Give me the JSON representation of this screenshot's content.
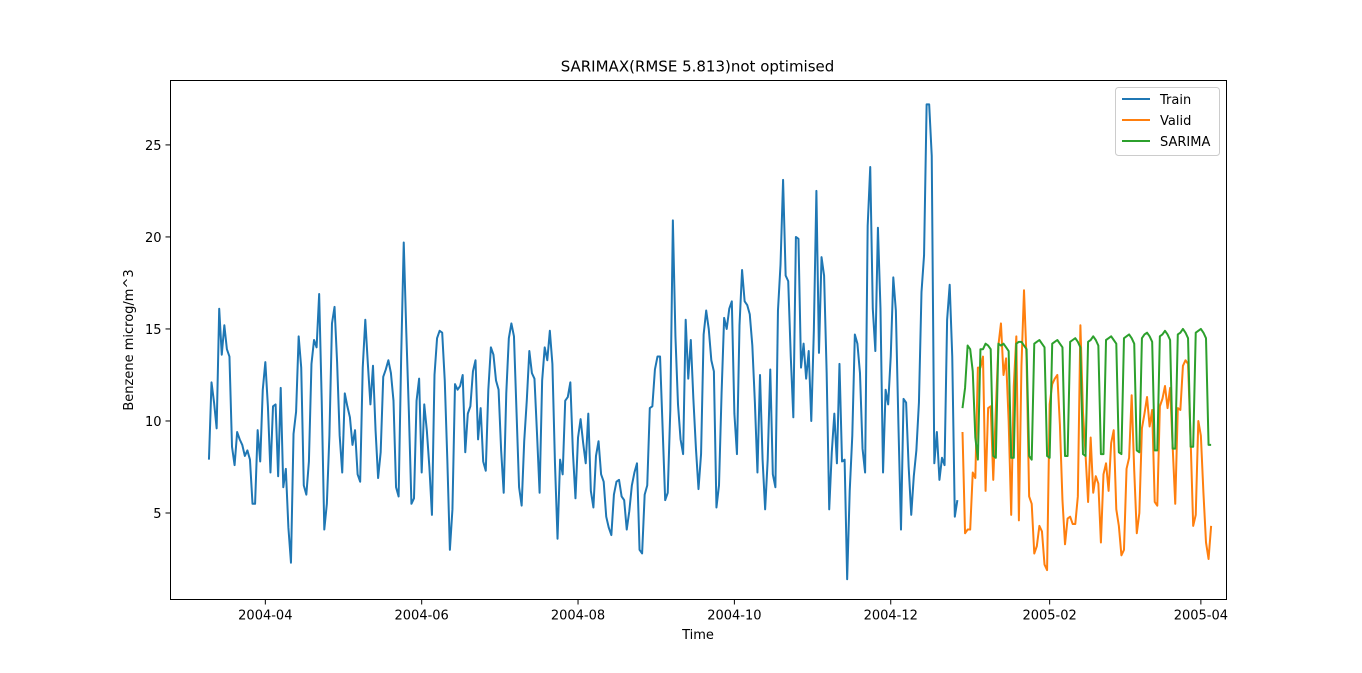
{
  "chart_data": {
    "type": "line",
    "title": "SARIMAX(RMSE 5.813)not optimised",
    "xlabel": "Time",
    "ylabel": "Benzene microg/m^3",
    "xlim": [
      "2004-02-24",
      "2005-04-11"
    ],
    "ylim": [
      0.3,
      28.5
    ],
    "x_ticks": [
      "2004-04-01",
      "2004-06-01",
      "2004-08-01",
      "2004-10-01",
      "2004-12-01",
      "2005-02-01",
      "2005-04-01"
    ],
    "x_tick_labels": [
      "2004-04",
      "2004-06",
      "2004-08",
      "2004-10",
      "2004-12",
      "2005-02",
      "2005-04"
    ],
    "y_ticks": [
      5,
      10,
      15,
      20,
      25
    ],
    "y_tick_labels": [
      "5",
      "10",
      "15",
      "20",
      "25"
    ],
    "grid": false,
    "legend_position": "upper right",
    "series": [
      {
        "name": "Train",
        "color": "#1f77b4",
        "start_date": "2004-03-10",
        "values": [
          7.9,
          12.1,
          11.0,
          9.6,
          16.1,
          13.6,
          15.2,
          13.9,
          13.5,
          8.6,
          7.6,
          9.4,
          9.0,
          8.7,
          8.1,
          8.4,
          7.9,
          5.5,
          5.5,
          9.5,
          7.8,
          11.7,
          13.2,
          10.8,
          7.2,
          10.8,
          10.9,
          7.0,
          11.8,
          6.4,
          7.4,
          4.2,
          2.3,
          9.3,
          10.5,
          14.6,
          12.9,
          6.5,
          6.0,
          7.8,
          13.1,
          14.4,
          14.0,
          16.9,
          11.1,
          4.1,
          5.5,
          9.2,
          15.3,
          16.2,
          13.2,
          9.2,
          7.2,
          11.5,
          10.8,
          10.2,
          8.7,
          9.5,
          7.1,
          6.7,
          12.9,
          15.5,
          13.1,
          10.9,
          13.0,
          9.5,
          6.9,
          8.3,
          12.4,
          12.8,
          13.3,
          12.6,
          11.1,
          6.4,
          5.9,
          13.5,
          19.7,
          14.8,
          10.5,
          5.5,
          5.8,
          11.1,
          12.3,
          7.2,
          10.9,
          9.5,
          7.5,
          4.9,
          12.5,
          14.5,
          14.9,
          14.8,
          12.2,
          7.9,
          3.0,
          5.2,
          12.0,
          11.7,
          11.9,
          12.5,
          8.3,
          10.4,
          10.8,
          12.7,
          13.3,
          9.0,
          10.7,
          7.8,
          7.3,
          11.7,
          14.0,
          13.6,
          12.2,
          11.7,
          8.4,
          6.1,
          11.5,
          14.5,
          15.3,
          14.6,
          10.5,
          6.4,
          5.4,
          8.9,
          11.1,
          13.8,
          12.6,
          12.3,
          9.3,
          6.1,
          12.2,
          14.0,
          13.3,
          14.9,
          13.1,
          7.7,
          3.6,
          7.9,
          7.1,
          11.1,
          11.3,
          12.1,
          8.3,
          5.8,
          9.1,
          10.1,
          8.8,
          7.7,
          10.4,
          6.2,
          5.3,
          8.1,
          8.9,
          7.1,
          6.7,
          4.8,
          4.2,
          3.8,
          6.0,
          6.7,
          6.8,
          5.9,
          5.7,
          4.1,
          5.1,
          6.5,
          7.2,
          7.7,
          3.0,
          2.8,
          6.0,
          6.5,
          10.7,
          10.8,
          12.8,
          13.5,
          13.5,
          9.6,
          5.7,
          6.1,
          10.6,
          20.9,
          14.6,
          10.9,
          9.0,
          8.2,
          15.5,
          12.3,
          14.4,
          11.2,
          8.5,
          6.3,
          8.2,
          14.7,
          16.0,
          15.0,
          13.3,
          12.7,
          5.3,
          6.5,
          11.5,
          15.6,
          15.0,
          16.1,
          16.5,
          10.4,
          8.2,
          15.2,
          18.2,
          16.5,
          16.3,
          15.8,
          14.1,
          11.0,
          7.2,
          12.5,
          7.9,
          5.2,
          7.9,
          12.8,
          7.1,
          6.4,
          16.0,
          18.5,
          23.1,
          17.9,
          17.6,
          13.5,
          10.2,
          20.0,
          19.9,
          12.9,
          14.2,
          12.3,
          13.8,
          10.0,
          14.9,
          22.5,
          13.7,
          18.9,
          17.9,
          12.6,
          5.2,
          8.3,
          10.4,
          7.7,
          13.1,
          7.8,
          7.9,
          1.4,
          6.2,
          9.2,
          14.7,
          14.2,
          12.6,
          8.5,
          7.2,
          20.6,
          23.8,
          16.1,
          13.8,
          20.5,
          16.1,
          7.2,
          11.7,
          10.9,
          13.5,
          17.8,
          16.0,
          9.8,
          4.1,
          11.2,
          11.0,
          7.5,
          4.9,
          7.0,
          8.4,
          11.0,
          17.0,
          19.0,
          27.2,
          27.2,
          24.4,
          7.7,
          9.4,
          6.8,
          8.0,
          7.6,
          15.5,
          17.4,
          13.5,
          4.8,
          5.7
        ]
      },
      {
        "name": "Valid",
        "color": "#ff7f0e",
        "start_date": "2004-12-29",
        "values": [
          9.4,
          3.9,
          4.1,
          4.1,
          7.2,
          6.9,
          12.9,
          12.9,
          13.5,
          6.2,
          10.7,
          10.8,
          6.8,
          10.6,
          14.1,
          15.3,
          12.5,
          13.4,
          10.0,
          4.9,
          11.9,
          14.6,
          4.6,
          13.0,
          17.1,
          13.3,
          5.9,
          5.5,
          2.8,
          3.2,
          4.3,
          4.0,
          2.2,
          1.9,
          10.9,
          12.0,
          12.3,
          12.5,
          9.8,
          5.7,
          3.3,
          4.7,
          4.8,
          4.4,
          4.4,
          5.9,
          15.2,
          10.5,
          8.2,
          5.6,
          9.1,
          6.1,
          7.0,
          6.6,
          3.4,
          7.1,
          7.7,
          6.2,
          8.8,
          9.5,
          5.2,
          4.3,
          2.7,
          3.0,
          7.4,
          8.0,
          11.4,
          7.3,
          3.9,
          5.0,
          9.6,
          10.4,
          11.3,
          9.7,
          10.6,
          5.6,
          5.4,
          10.8,
          11.2,
          11.9,
          10.7,
          11.8,
          8.6,
          5.5,
          10.7,
          10.6,
          13.0,
          13.3,
          13.1,
          9.0,
          4.3,
          4.9,
          10.0,
          9.2,
          6.1,
          3.4,
          2.5,
          4.3
        ]
      },
      {
        "name": "SARIMA",
        "color": "#2ca02c",
        "start_date": "2004-12-29",
        "values": [
          10.7,
          11.8,
          14.1,
          13.9,
          12.7,
          9.1,
          7.9,
          13.9,
          13.9,
          14.2,
          14.1,
          13.9,
          8.1,
          8.0,
          14.2,
          14.1,
          14.2,
          14.0,
          13.8,
          8.0,
          8.0,
          14.2,
          14.3,
          14.3,
          14.1,
          13.9,
          8.1,
          7.9,
          14.2,
          14.3,
          14.4,
          14.2,
          14.0,
          8.1,
          8.0,
          14.2,
          14.3,
          14.4,
          14.2,
          14.0,
          8.1,
          8.1,
          14.3,
          14.4,
          14.5,
          14.3,
          14.0,
          8.2,
          8.1,
          14.3,
          14.4,
          14.6,
          14.4,
          14.1,
          8.2,
          8.2,
          14.4,
          14.5,
          14.6,
          14.4,
          14.2,
          8.3,
          8.2,
          14.5,
          14.6,
          14.7,
          14.5,
          14.2,
          8.4,
          8.3,
          14.5,
          14.7,
          14.8,
          14.6,
          14.3,
          8.4,
          8.4,
          14.6,
          14.7,
          14.9,
          14.7,
          14.4,
          8.5,
          8.5,
          14.7,
          14.8,
          15.0,
          14.8,
          14.5,
          8.6,
          8.6,
          14.8,
          14.9,
          15.0,
          14.8,
          14.5,
          8.7,
          8.7
        ]
      }
    ]
  }
}
